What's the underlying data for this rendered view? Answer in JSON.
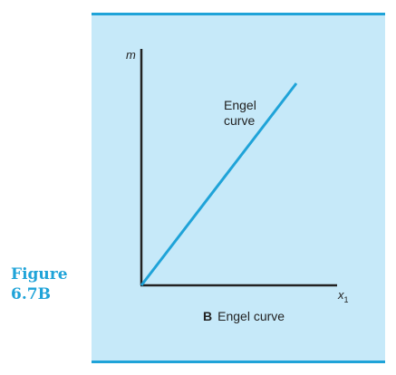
{
  "figure": {
    "label_line1": "Figure",
    "label_line2": "6.7B"
  },
  "diagram": {
    "y_axis_label": "m",
    "x_axis_label": "x",
    "x_axis_subscript": "1",
    "curve_label_line1": "Engel",
    "curve_label_line2": "curve",
    "panel_letter": "B",
    "caption": "Engel curve"
  },
  "colors": {
    "accent": "#1fa3d8",
    "panel_background": "#c6e9f9",
    "axes": "#222222"
  }
}
